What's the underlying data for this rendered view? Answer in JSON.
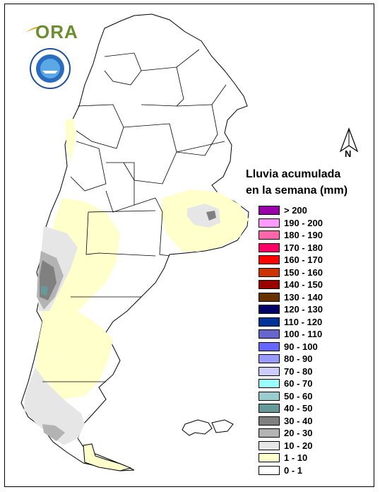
{
  "legend": {
    "title_line1": "Lluvia acumulada",
    "title_line2": "en la semana (mm)",
    "items": [
      {
        "label": "> 200",
        "color": "#9900aa"
      },
      {
        "label": "190 - 200",
        "color": "#ff99ff"
      },
      {
        "label": "180 - 190",
        "color": "#ff66aa"
      },
      {
        "label": "170 - 180",
        "color": "#ff0066"
      },
      {
        "label": "160 - 170",
        "color": "#ff0000"
      },
      {
        "label": "150 - 160",
        "color": "#cc3300"
      },
      {
        "label": "140 - 150",
        "color": "#990000"
      },
      {
        "label": "130 - 140",
        "color": "#663300"
      },
      {
        "label": "120 - 130",
        "color": "#000066"
      },
      {
        "label": "110 - 120",
        "color": "#003399"
      },
      {
        "label": "100 - 110",
        "color": "#6666cc"
      },
      {
        "label": "90 - 100",
        "color": "#6666ff"
      },
      {
        "label": "80 - 90",
        "color": "#9999ff"
      },
      {
        "label": "70 - 80",
        "color": "#ccccff"
      },
      {
        "label": "60 - 70",
        "color": "#99ffff"
      },
      {
        "label": "50 - 60",
        "color": "#99cccc"
      },
      {
        "label": "40 - 50",
        "color": "#669999"
      },
      {
        "label": "30 - 40",
        "color": "#808080"
      },
      {
        "label": "20 - 30",
        "color": "#b3b3b3"
      },
      {
        "label": "10 - 20",
        "color": "#e6e6e6"
      },
      {
        "label": "1 - 10",
        "color": "#ffffcc"
      },
      {
        "label": "0 - 1",
        "color": "#ffffff"
      }
    ]
  },
  "north_arrow": {
    "label": "N"
  },
  "logo": {
    "text": "ORA"
  }
}
